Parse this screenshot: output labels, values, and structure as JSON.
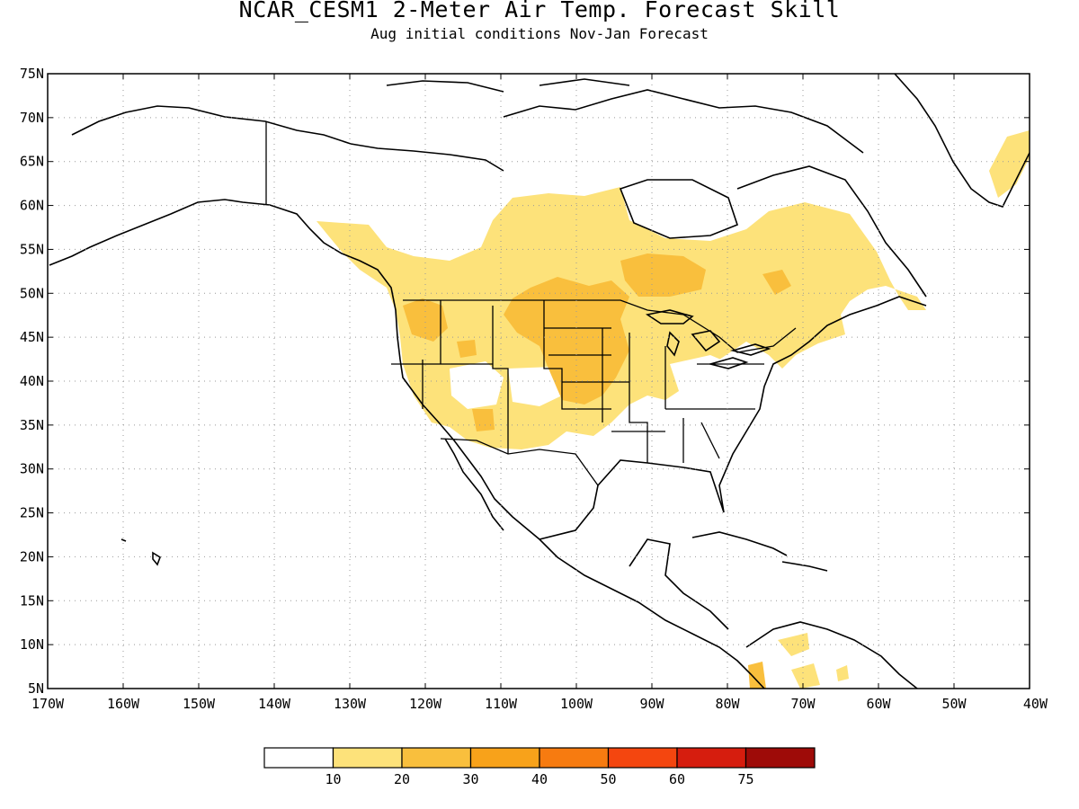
{
  "title": "NCAR_CESM1 2-Meter Air Temp. Forecast Skill",
  "subtitle": "Aug initial conditions  Nov-Jan Forecast",
  "map": {
    "lon_range": [
      -170,
      -40
    ],
    "lat_range": [
      5,
      75
    ],
    "lat_labels": [
      "5N",
      "10N",
      "15N",
      "20N",
      "25N",
      "30N",
      "35N",
      "40N",
      "45N",
      "50N",
      "55N",
      "60N",
      "65N",
      "70N",
      "75N"
    ],
    "lon_labels": [
      "170W",
      "160W",
      "150W",
      "140W",
      "130W",
      "120W",
      "110W",
      "100W",
      "90W",
      "80W",
      "70W",
      "60W",
      "50W",
      "40W"
    ]
  },
  "legend": {
    "labels": [
      "10",
      "20",
      "30",
      "40",
      "50",
      "60",
      "75"
    ],
    "colors": [
      "#ffffff",
      "#fde27a",
      "#f9bf3d",
      "#f8a21a",
      "#f77b10",
      "#f4460f",
      "#d61d0e",
      "#9e0b08"
    ]
  }
}
